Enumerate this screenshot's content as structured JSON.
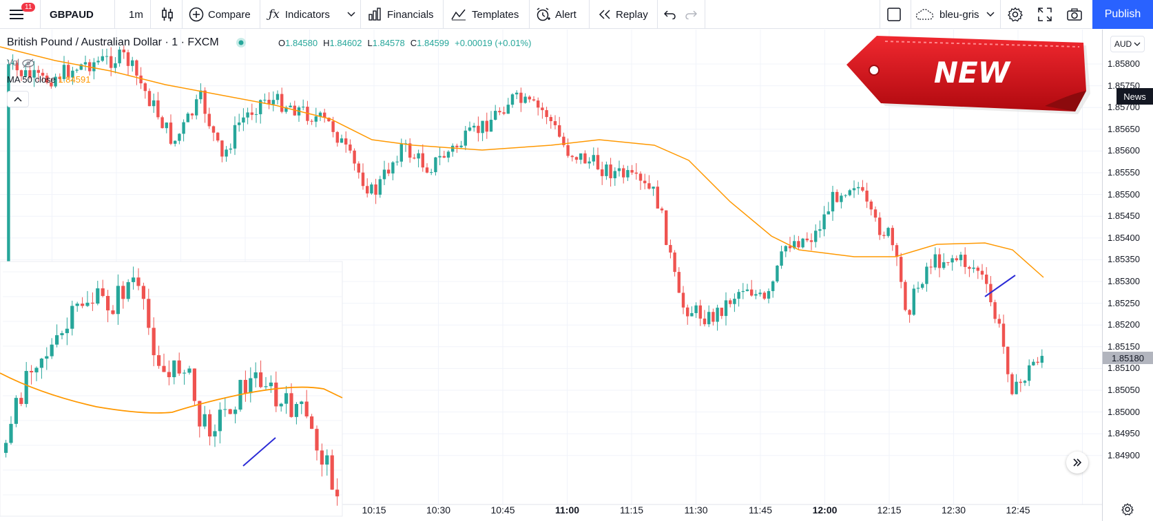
{
  "toolbar": {
    "menu_badge": "11",
    "symbol": "GBPAUD",
    "interval": "1m",
    "compare": "Compare",
    "indicators": "Indicators",
    "financials": "Financials",
    "templates": "Templates",
    "alert": "Alert",
    "replay": "Replay",
    "layout_name": "bleu-gris",
    "publish": "Publish"
  },
  "legend": {
    "title": "British Pound / Australian Dollar · 1 · FXCM",
    "open_label": "O",
    "open": "1.84580",
    "high_label": "H",
    "high": "1.84602",
    "low_label": "L",
    "low": "1.84578",
    "close_label": "C",
    "close": "1.84599",
    "change": "+0.00019 (+0.01%)",
    "vol_label": "Vol",
    "ma_label": "MA 50 close",
    "ma_value": "1.84591"
  },
  "price_axis": {
    "currency": "AUD",
    "labels": [
      "1.85800",
      "1.85750",
      "1.85700",
      "1.85650",
      "1.85600",
      "1.85550",
      "1.85500",
      "1.85450",
      "1.85400",
      "1.85350",
      "1.85300",
      "1.85250",
      "1.85200",
      "1.85150",
      "1.85100",
      "1.85050",
      "1.85000",
      "1.84950",
      "1.84900"
    ],
    "last_price": "1.85180",
    "news": "News"
  },
  "time_axis": {
    "labels": [
      "10:15",
      "10:30",
      "10:45",
      "11:00",
      "11:15",
      "11:30",
      "11:45",
      "12:00",
      "12:15",
      "12:30",
      "12:45"
    ],
    "bold": [
      "11:00",
      "12:00"
    ]
  },
  "overlay": {
    "tag_text": "NEW"
  },
  "icons": [
    "hamburger-icon",
    "candles-icon",
    "plus-circle-icon",
    "fx-icon",
    "chevron-down-icon",
    "financials-icon",
    "templates-icon",
    "alarm-icon",
    "replay-icon",
    "undo-icon",
    "redo-icon",
    "square-icon",
    "cloud-icon",
    "gear-icon",
    "fullscreen-icon",
    "camera-icon",
    "eye-off-icon",
    "chevron-up-icon",
    "double-chevron-right-icon",
    "settings-small-icon"
  ],
  "colors": {
    "up": "#26a69a",
    "down": "#ef5350",
    "ma": "#ff9800",
    "accent": "#2962ff",
    "tag": "#e31b23"
  }
}
